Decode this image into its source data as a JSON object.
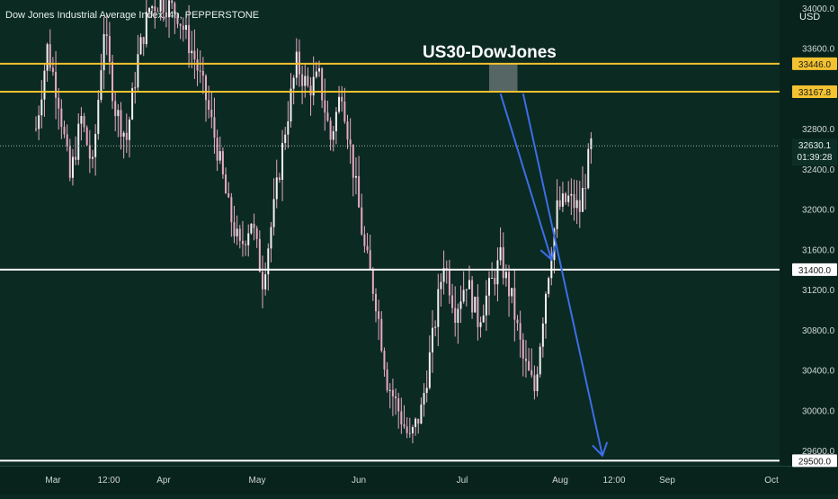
{
  "header": {
    "symbol_title": "Dow Jones Industrial Average Index, 4h, PEPPERSTONE",
    "annotation_title": "US30-DowJones",
    "currency": "USD"
  },
  "colors": {
    "background": "#0b2a22",
    "candle": "#e7a9c3",
    "resistance_line": "#f2c230",
    "support_line": "#ffffff",
    "arrow": "#3d6ee8",
    "zone": "#5d6d6b",
    "price_label_bg": "#f2c230"
  },
  "chart_data": {
    "type": "candlestick",
    "title": "US30-DowJones",
    "ylim": [
      29450,
      34080
    ],
    "y_axis_ticks": [
      34000,
      33600,
      32800,
      32400,
      32000,
      31600,
      31200,
      30800,
      30400,
      30000,
      29600
    ],
    "x_axis_ticks": [
      "Mar",
      "12:00",
      "Apr",
      "May",
      "Jun",
      "Jul",
      "Aug",
      "12:00",
      "Sep",
      "Oct"
    ],
    "price_path": [
      [
        0,
        32800
      ],
      [
        2,
        33600
      ],
      [
        4,
        33100
      ],
      [
        6,
        32300
      ],
      [
        8,
        32900
      ],
      [
        10,
        32400
      ],
      [
        12,
        33800
      ],
      [
        14,
        33000
      ],
      [
        16,
        32700
      ],
      [
        18,
        33500
      ],
      [
        20,
        34000
      ],
      [
        22,
        34080
      ],
      [
        25,
        33950
      ],
      [
        28,
        33500
      ],
      [
        30,
        33100
      ],
      [
        32,
        32600
      ],
      [
        34,
        32000
      ],
      [
        36,
        31600
      ],
      [
        38,
        31900
      ],
      [
        40,
        31300
      ],
      [
        42,
        32000
      ],
      [
        44,
        32800
      ],
      [
        46,
        33446
      ],
      [
        48,
        33200
      ],
      [
        50,
        33300
      ],
      [
        52,
        32700
      ],
      [
        54,
        33200
      ],
      [
        56,
        32400
      ],
      [
        58,
        31600
      ],
      [
        60,
        31100
      ],
      [
        62,
        30300
      ],
      [
        64,
        30000
      ],
      [
        66,
        29700
      ],
      [
        68,
        30000
      ],
      [
        70,
        30700
      ],
      [
        72,
        31500
      ],
      [
        74,
        31000
      ],
      [
        76,
        31300
      ],
      [
        78,
        30900
      ],
      [
        80,
        31200
      ],
      [
        82,
        31500
      ],
      [
        84,
        31100
      ],
      [
        86,
        30500
      ],
      [
        88,
        30200
      ],
      [
        90,
        31200
      ],
      [
        92,
        32000
      ],
      [
        94,
        32100
      ],
      [
        96,
        32000
      ],
      [
        98,
        32630
      ]
    ],
    "horizontal_levels": [
      {
        "value": 33446.0,
        "label": "33446.0",
        "style": "resistance"
      },
      {
        "value": 33167.8,
        "label": "33167.8",
        "style": "resistance"
      },
      {
        "value": 31400.0,
        "label": "31400.0",
        "style": "support"
      },
      {
        "value": 29500.0,
        "label": "29500.0",
        "style": "support"
      }
    ],
    "current_price": {
      "value": 32630.1,
      "label": "32630.1",
      "countdown": "01:39:28"
    },
    "zone": {
      "x_from": 80,
      "x_to": 85,
      "y_from": 33167.8,
      "y_to": 33446.0
    },
    "arrows": [
      {
        "from": [
          82,
          33150
        ],
        "to": [
          91,
          31500
        ]
      },
      {
        "from": [
          86,
          33150
        ],
        "to": [
          100,
          29550
        ]
      }
    ]
  }
}
